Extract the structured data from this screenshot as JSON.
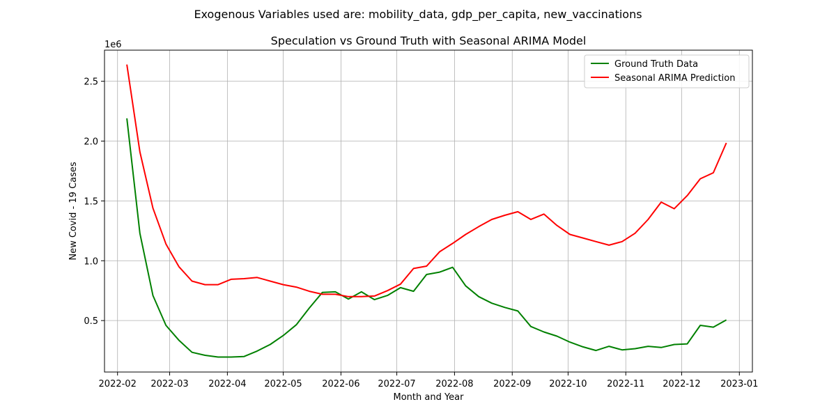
{
  "suptitle": "Exogenous Variables used are: mobility_data, gdp_per_capita, new_vaccinations",
  "chart_data": {
    "type": "line",
    "title": "Speculation vs Ground Truth with Seasonal ARIMA Model",
    "xlabel": "Month and Year",
    "ylabel": "New Covid - 19 Cases",
    "y_offset_label": "1e6",
    "y_scale": 1000000,
    "xlim": [
      "2022-01-25",
      "2023-01-08"
    ],
    "ylim": [
      70000,
      2760000
    ],
    "x_ticks": [
      "2022-02-01",
      "2022-03-01",
      "2022-04-01",
      "2022-05-01",
      "2022-06-01",
      "2022-07-01",
      "2022-08-01",
      "2022-09-01",
      "2022-10-01",
      "2022-11-01",
      "2022-12-01",
      "2023-01-01"
    ],
    "x_tick_labels": [
      "2022-02",
      "2022-03",
      "2022-04",
      "2022-05",
      "2022-06",
      "2022-07",
      "2022-08",
      "2022-09",
      "2022-10",
      "2022-11",
      "2022-12",
      "2023-01"
    ],
    "y_ticks": [
      500000,
      1000000,
      1500000,
      2000000,
      2500000
    ],
    "y_tick_labels": [
      "0.5",
      "1.0",
      "1.5",
      "2.0",
      "2.5"
    ],
    "grid": true,
    "legend_position": "top-right",
    "x": [
      "2022-02-06",
      "2022-02-13",
      "2022-02-20",
      "2022-02-27",
      "2022-03-06",
      "2022-03-13",
      "2022-03-20",
      "2022-03-27",
      "2022-04-03",
      "2022-04-10",
      "2022-04-17",
      "2022-04-24",
      "2022-05-01",
      "2022-05-08",
      "2022-05-15",
      "2022-05-22",
      "2022-05-29",
      "2022-06-05",
      "2022-06-12",
      "2022-06-19",
      "2022-06-26",
      "2022-07-03",
      "2022-07-10",
      "2022-07-17",
      "2022-07-24",
      "2022-07-31",
      "2022-08-07",
      "2022-08-14",
      "2022-08-21",
      "2022-08-28",
      "2022-09-04",
      "2022-09-11",
      "2022-09-18",
      "2022-09-25",
      "2022-10-02",
      "2022-10-09",
      "2022-10-16",
      "2022-10-23",
      "2022-10-30",
      "2022-11-06",
      "2022-11-13",
      "2022-11-20",
      "2022-11-27",
      "2022-12-04",
      "2022-12-11",
      "2022-12-18",
      "2022-12-25"
    ],
    "series": [
      {
        "name": "Ground Truth Data",
        "color": "#008000",
        "values": [
          2190000,
          1230000,
          710000,
          460000,
          335000,
          235000,
          210000,
          195000,
          195000,
          200000,
          245000,
          300000,
          375000,
          465000,
          605000,
          735000,
          740000,
          680000,
          740000,
          675000,
          710000,
          775000,
          745000,
          885000,
          905000,
          945000,
          790000,
          700000,
          645000,
          610000,
          580000,
          450000,
          405000,
          370000,
          320000,
          280000,
          250000,
          285000,
          255000,
          265000,
          285000,
          275000,
          300000,
          305000,
          460000,
          445000,
          505000
        ]
      },
      {
        "name": "Seasonal ARIMA Prediction",
        "color": "#ff0000",
        "values": [
          2640000,
          1910000,
          1440000,
          1140000,
          950000,
          830000,
          800000,
          800000,
          845000,
          850000,
          860000,
          830000,
          800000,
          780000,
          745000,
          720000,
          720000,
          700000,
          700000,
          705000,
          750000,
          805000,
          935000,
          955000,
          1075000,
          1145000,
          1220000,
          1285000,
          1345000,
          1380000,
          1410000,
          1345000,
          1390000,
          1295000,
          1220000,
          1190000,
          1160000,
          1130000,
          1160000,
          1230000,
          1345000,
          1490000,
          1435000,
          1545000,
          1685000,
          1735000,
          1985000
        ]
      }
    ]
  }
}
